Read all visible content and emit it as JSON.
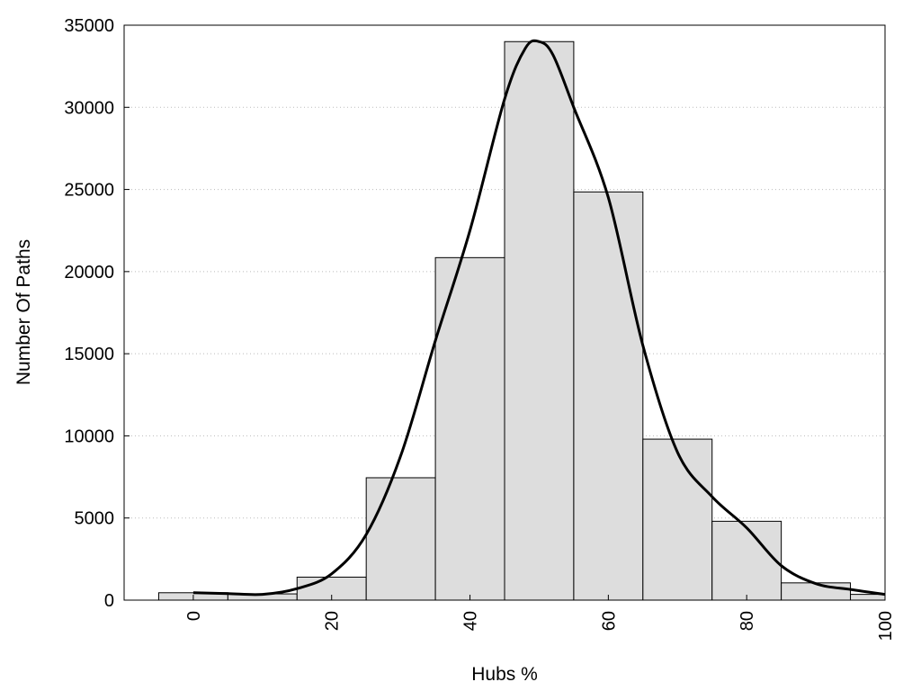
{
  "chart_data": {
    "type": "bar",
    "xlabel": "Hubs %",
    "ylabel": "Number Of Paths",
    "xlim": [
      -10,
      100
    ],
    "ylim": [
      0,
      35000
    ],
    "grid": "horizontal dotted",
    "bar_width": 10,
    "bar_fill": "#dddddd",
    "bar_stroke": "#000000",
    "curve_color": "#000000",
    "x_ticks": [
      "0",
      "20",
      "40",
      "60",
      "80",
      "100"
    ],
    "y_ticks": [
      "0",
      "5000",
      "10000",
      "15000",
      "20000",
      "25000",
      "30000",
      "35000"
    ],
    "bins": [
      {
        "x": 0,
        "value": 450
      },
      {
        "x": 10,
        "value": 380
      },
      {
        "x": 20,
        "value": 1400
      },
      {
        "x": 30,
        "value": 7450
      },
      {
        "x": 40,
        "value": 20850
      },
      {
        "x": 50,
        "value": 34000
      },
      {
        "x": 60,
        "value": 24850
      },
      {
        "x": 70,
        "value": 9800
      },
      {
        "x": 80,
        "value": 4800
      },
      {
        "x": 90,
        "value": 1050
      },
      {
        "x": 100,
        "value": 350
      }
    ],
    "series": [
      {
        "type": "line",
        "x": [
          0,
          5,
          10,
          15,
          20,
          25,
          30,
          35,
          40,
          45,
          48,
          50,
          52,
          55,
          60,
          65,
          70,
          75,
          80,
          85,
          90,
          95,
          100
        ],
        "values": [
          450,
          400,
          350,
          700,
          1600,
          4000,
          8800,
          15800,
          22500,
          30500,
          33600,
          34000,
          33200,
          30000,
          24500,
          15500,
          9000,
          6300,
          4400,
          2100,
          1000,
          650,
          350
        ]
      }
    ]
  }
}
